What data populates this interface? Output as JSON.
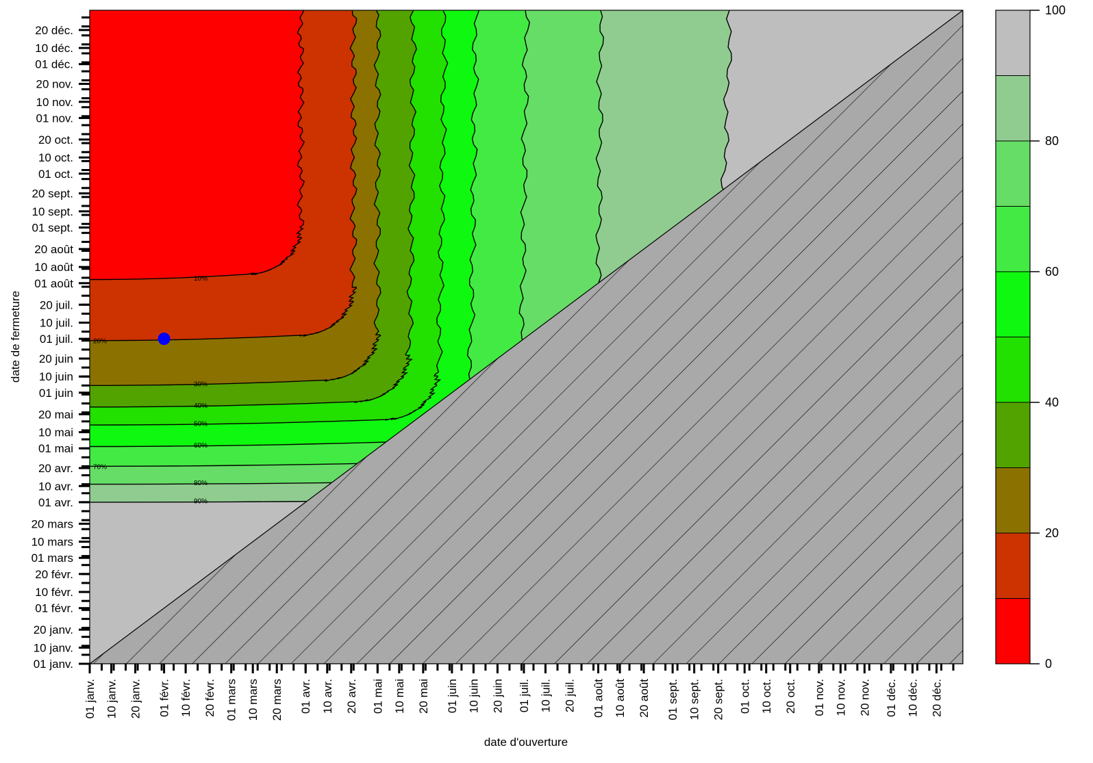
{
  "chart_data": {
    "type": "heatmap",
    "subtype": "filled-contour",
    "xlabel": "date d'ouverture",
    "ylabel": "date de fermeture",
    "x_ticks": [
      "01 janv.",
      "10 janv.",
      "20 janv.",
      "01 févr.",
      "10 févr.",
      "20 févr.",
      "01 mars",
      "10 mars",
      "20 mars",
      "01 avr.",
      "10 avr.",
      "20 avr.",
      "01 mai",
      "10 mai",
      "20 mai",
      "01 juin",
      "10 juin",
      "20 juin",
      "01 juil.",
      "10 juil.",
      "20 juil.",
      "01 août",
      "10 août",
      "20 août",
      "01 sept.",
      "10 sept.",
      "20 sept.",
      "01 oct.",
      "10 oct.",
      "20 oct.",
      "01 nov.",
      "10 nov.",
      "20 nov.",
      "01 déc.",
      "10 déc.",
      "20 déc."
    ],
    "y_ticks": [
      "01 janv.",
      "10 janv.",
      "20 janv.",
      "01 févr.",
      "10 févr.",
      "20 févr.",
      "01 mars",
      "10 mars",
      "20 mars",
      "01 avr.",
      "10 avr.",
      "20 avr.",
      "01 mai",
      "10 mai",
      "20 mai",
      "01 juin",
      "10 juin",
      "20 juin",
      "01 juil.",
      "10 juil.",
      "20 juil.",
      "01 août",
      "10 août",
      "20 août",
      "01 sept.",
      "10 sept.",
      "20 sept.",
      "01 oct.",
      "10 oct.",
      "20 oct.",
      "01 nov.",
      "10 nov.",
      "20 nov.",
      "01 déc.",
      "10 déc.",
      "20 déc."
    ],
    "x_tick_days": [
      1,
      10,
      20,
      32,
      41,
      51,
      60,
      69,
      79,
      91,
      100,
      110,
      121,
      130,
      140,
      152,
      161,
      171,
      182,
      191,
      201,
      213,
      222,
      232,
      244,
      253,
      263,
      274,
      283,
      293,
      305,
      314,
      324,
      335,
      344,
      354
    ],
    "y_tick_days": [
      1,
      10,
      20,
      32,
      41,
      51,
      60,
      69,
      79,
      91,
      100,
      110,
      121,
      130,
      140,
      152,
      161,
      171,
      182,
      191,
      201,
      213,
      222,
      232,
      244,
      253,
      263,
      274,
      283,
      293,
      305,
      314,
      324,
      335,
      344,
      354
    ],
    "xlim": [
      "01 janv.",
      "31 déc."
    ],
    "ylim": [
      "01 janv.",
      "31 déc."
    ],
    "levels": [
      0,
      10,
      20,
      30,
      40,
      50,
      60,
      70,
      80,
      90,
      100
    ],
    "level_colors": [
      "#ff0000",
      "#cc3300",
      "#8b7200",
      "#52a300",
      "#22e000",
      "#0ff80f",
      "#44ea44",
      "#66dd66",
      "#90cc90",
      "#bebebe"
    ],
    "contour_labels": [
      "10%",
      "20%",
      "30%",
      "40%",
      "50%",
      "60%",
      "70%",
      "80%",
      "90%"
    ],
    "contours": [
      {
        "level": 10,
        "label": "10%",
        "flat_closing_day": 215,
        "corner_opening_day": 89,
        "vertical_opening_day": 89
      },
      {
        "level": 20,
        "label": "20%",
        "flat_closing_day": 181,
        "corner_opening_day": 111,
        "vertical_opening_day": 111
      },
      {
        "level": 30,
        "label": "30%",
        "flat_closing_day": 156,
        "corner_opening_day": 121,
        "vertical_opening_day": 121
      },
      {
        "level": 40,
        "label": "40%",
        "flat_closing_day": 144,
        "corner_opening_day": 134,
        "vertical_opening_day": 136
      },
      {
        "level": 50,
        "label": "50%",
        "flat_closing_day": 134,
        "corner_opening_day": 146,
        "vertical_opening_day": 149
      },
      {
        "level": 60,
        "label": "60%",
        "flat_closing_day": 122,
        "corner_opening_day": 159,
        "vertical_opening_day": 162
      },
      {
        "level": 70,
        "label": "70%",
        "flat_closing_day": 111,
        "corner_opening_day": 180,
        "vertical_opening_day": 183
      },
      {
        "level": 80,
        "label": "80%",
        "flat_closing_day": 101,
        "corner_opening_day": 212,
        "vertical_opening_day": 214
      },
      {
        "level": 90,
        "label": "90%",
        "flat_closing_day": 91,
        "corner_opening_day": 258,
        "vertical_opening_day": 268
      }
    ],
    "invalid_region": "date de fermeture < date d'ouverture (hatched)",
    "marker": {
      "opening_day": 32,
      "closing_day": 182,
      "color": "#0000ff"
    },
    "legend": {
      "position": "right",
      "ticks": [
        0,
        20,
        40,
        60,
        80,
        100
      ]
    },
    "grid": false
  }
}
